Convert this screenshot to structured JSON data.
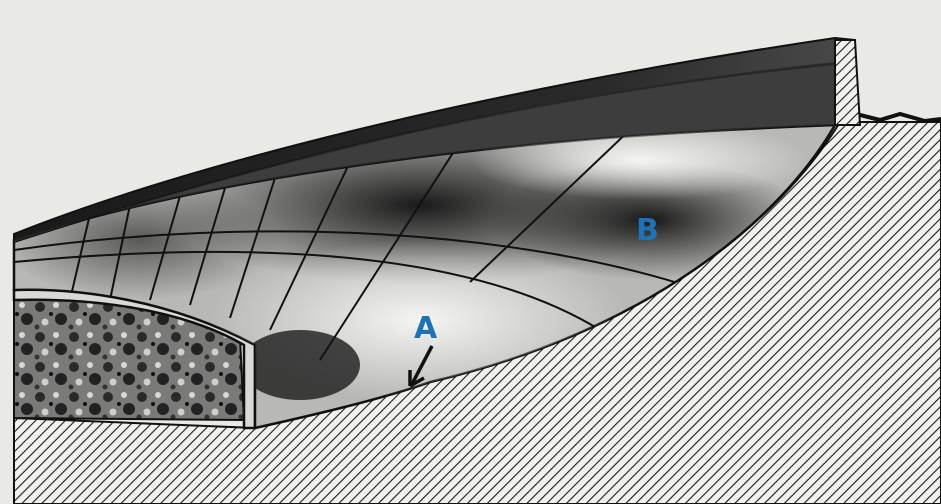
{
  "figure": {
    "labels": {
      "a": "A",
      "b": "B"
    },
    "colors": {
      "background": "#e9e9e6",
      "ink": "#111111",
      "label": "#1f72b8"
    }
  }
}
